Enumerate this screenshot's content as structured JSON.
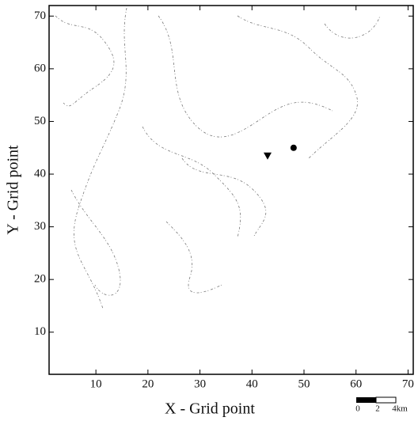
{
  "chart_data": {
    "type": "scatter",
    "xlabel": "X - Grid point",
    "ylabel": "Y - Grid point",
    "xlim": [
      1,
      71
    ],
    "ylim": [
      2,
      72
    ],
    "xticks": [
      10,
      20,
      30,
      40,
      50,
      60,
      70
    ],
    "yticks": [
      10,
      20,
      30,
      40,
      50,
      60,
      70
    ],
    "points": [
      {
        "x": 48,
        "y": 45,
        "marker": "circle",
        "color": "#000000"
      },
      {
        "x": 43,
        "y": 43.5,
        "marker": "triangle",
        "color": "#000000"
      }
    ],
    "scale_bar": {
      "labels": [
        "0",
        "2",
        "4km"
      ]
    }
  }
}
